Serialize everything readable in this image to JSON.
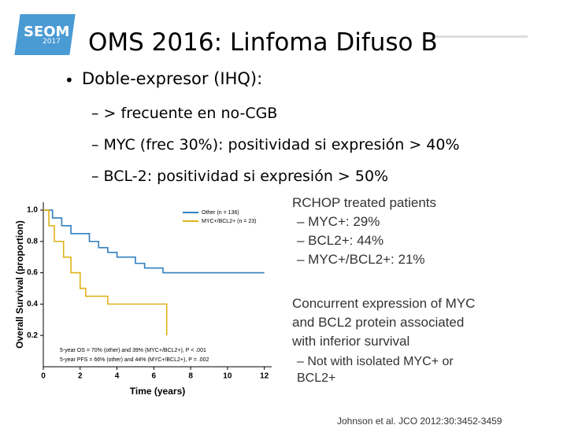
{
  "slide": {
    "logo": "SEOM",
    "logo_year": "2017",
    "title": "OMS 2016: Linfoma Difuso B",
    "bullet": "Doble-expresor (IHQ):",
    "sub_bullets": [
      "– > frecuente en no-CGB",
      "– MYC (frec 30%): positividad si expresión > 40%",
      "– BCL-2: positividad si expresión > 50%"
    ]
  },
  "figure": {
    "heading": "RCHOP treated patients",
    "items": [
      "– MYC+: 29%",
      "– BCL2+: 44%",
      "– MYC+/BCL2+: 21%"
    ],
    "heading2": "Concurrent expression of MYC and BCL2 protein associated with inferior survival",
    "items2": [
      "– Not with isolated MYC+ or BCL2+"
    ],
    "citation": "Johnson et al. JCO 2012:30:3452-3459"
  },
  "chart_data": {
    "type": "line",
    "x_label": "Time (years)",
    "y_label": "Overall Survival (proportion)",
    "annotations": [
      "5-year OS = 70% (other) and 39% (MYC+/BCL2+), P < .001",
      "5-year PFS = 66% (other) and 44% (MYC+/BCL2+), P = .002"
    ],
    "xlim": [
      0,
      12.4
    ],
    "xticks": [
      0,
      2,
      4,
      6,
      8,
      10,
      12
    ],
    "ylim": [
      0,
      1.05
    ],
    "yticks": [
      0.2,
      0.4,
      0.6,
      0.8,
      {
        "value": 1,
        "label": "1.0"
      }
    ],
    "series": [
      {
        "name": "Other (n = 136)",
        "color": "#2f7fc1",
        "x": [
          0,
          0.5,
          0.5,
          1,
          1,
          1.5,
          1.5,
          2.5,
          2.5,
          3,
          3,
          3.5,
          3.5,
          4,
          4,
          5,
          5,
          5.5,
          5.5,
          6.5,
          6.5,
          12
        ],
        "values": [
          1,
          1,
          0.95,
          0.95,
          0.9,
          0.9,
          0.85,
          0.85,
          0.8,
          0.8,
          0.76,
          0.76,
          0.73,
          0.73,
          0.7,
          0.7,
          0.66,
          0.66,
          0.63,
          0.63,
          0.6,
          0.6
        ]
      },
      {
        "name": "MYC+/BCL2+ (n = 23)",
        "color": "#e0b21a",
        "x": [
          0,
          0.3,
          0.3,
          0.6,
          0.6,
          1.1,
          1.1,
          1.5,
          1.5,
          2,
          2,
          2.3,
          2.3,
          3.5,
          3.5,
          6.7,
          6.7
        ],
        "values": [
          1,
          1,
          0.9,
          0.9,
          0.8,
          0.8,
          0.7,
          0.7,
          0.6,
          0.6,
          0.5,
          0.5,
          0.45,
          0.45,
          0.4,
          0.4,
          0.2
        ]
      }
    ]
  }
}
